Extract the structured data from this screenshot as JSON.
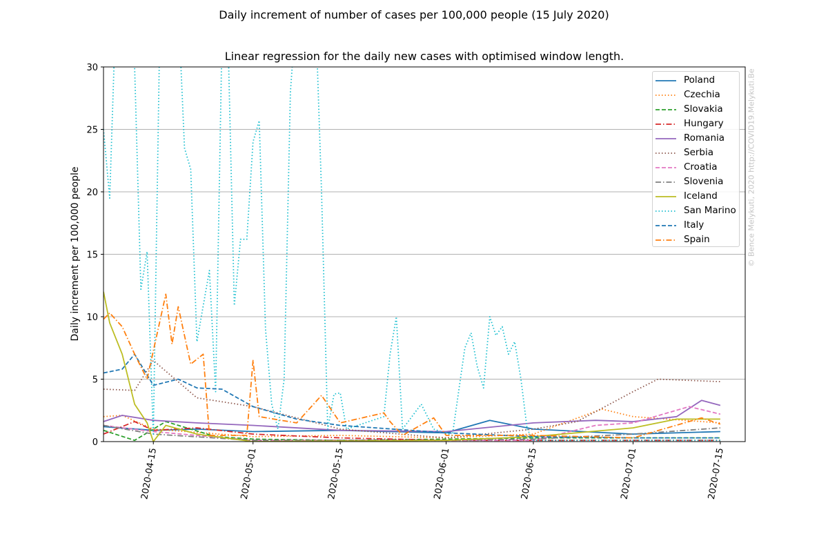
{
  "figure": {
    "suptitle": "Daily increment of number of cases per 100,000 people (15 July 2020)",
    "credit": "© Bence Melykuti, 2020  http://COVID19.Melykuti.Be"
  },
  "chart_data": {
    "type": "line",
    "title": "Linear regression for the daily new cases with optimised window length.",
    "xlabel": "",
    "ylabel": "Daily increment per 100,000 people",
    "x_start": "2020-04-07",
    "x_end": "2020-07-15",
    "xlim": [
      "2020-04-07",
      "2020-07-19"
    ],
    "ylim": [
      0,
      30
    ],
    "x_ticks": [
      "2020-04-15",
      "2020-05-01",
      "2020-05-15",
      "2020-06-01",
      "2020-06-15",
      "2020-07-01",
      "2020-07-15"
    ],
    "y_ticks": [
      0,
      5,
      10,
      15,
      20,
      25,
      30
    ],
    "grid": "horizontal",
    "legend_position": "top-right",
    "series": [
      {
        "name": "Poland",
        "color": "#1f77b4",
        "dash": "solid",
        "points": [
          [
            "2020-04-07",
            1.2
          ],
          [
            "2020-04-15",
            0.9
          ],
          [
            "2020-04-22",
            1.0
          ],
          [
            "2020-05-01",
            0.8
          ],
          [
            "2020-05-15",
            0.9
          ],
          [
            "2020-06-01",
            0.7
          ],
          [
            "2020-06-08",
            1.7
          ],
          [
            "2020-06-15",
            1.0
          ],
          [
            "2020-07-01",
            0.6
          ],
          [
            "2020-07-15",
            0.8
          ]
        ]
      },
      {
        "name": "Czechia",
        "color": "#ff7f0e",
        "dash": "dotted",
        "points": [
          [
            "2020-04-07",
            2.0
          ],
          [
            "2020-04-10",
            2.1
          ],
          [
            "2020-04-15",
            1.0
          ],
          [
            "2020-05-01",
            0.4
          ],
          [
            "2020-05-15",
            0.5
          ],
          [
            "2020-06-01",
            0.3
          ],
          [
            "2020-06-15",
            0.6
          ],
          [
            "2020-06-26",
            2.6
          ],
          [
            "2020-07-01",
            2.0
          ],
          [
            "2020-07-15",
            1.5
          ]
        ]
      },
      {
        "name": "Slovakia",
        "color": "#2ca02c",
        "dash": "dashed",
        "points": [
          [
            "2020-04-07",
            0.9
          ],
          [
            "2020-04-12",
            0.1
          ],
          [
            "2020-04-17",
            1.6
          ],
          [
            "2020-04-25",
            0.4
          ],
          [
            "2020-05-01",
            0.2
          ],
          [
            "2020-05-15",
            0.1
          ],
          [
            "2020-06-01",
            0.2
          ],
          [
            "2020-06-15",
            0.3
          ],
          [
            "2020-07-01",
            0.3
          ],
          [
            "2020-07-15",
            0.3
          ]
        ]
      },
      {
        "name": "Hungary",
        "color": "#d62728",
        "dash": "dashdot",
        "points": [
          [
            "2020-04-07",
            0.6
          ],
          [
            "2020-04-12",
            1.6
          ],
          [
            "2020-04-15",
            0.9
          ],
          [
            "2020-04-22",
            1.1
          ],
          [
            "2020-05-01",
            0.6
          ],
          [
            "2020-05-15",
            0.3
          ],
          [
            "2020-06-01",
            0.1
          ],
          [
            "2020-06-15",
            0.1
          ],
          [
            "2020-07-01",
            0.1
          ],
          [
            "2020-07-15",
            0.1
          ]
        ]
      },
      {
        "name": "Romania",
        "color": "#9467bd",
        "dash": "solid",
        "points": [
          [
            "2020-04-07",
            1.6
          ],
          [
            "2020-04-10",
            2.1
          ],
          [
            "2020-04-15",
            1.7
          ],
          [
            "2020-04-22",
            1.5
          ],
          [
            "2020-05-01",
            1.3
          ],
          [
            "2020-05-15",
            0.9
          ],
          [
            "2020-06-01",
            0.8
          ],
          [
            "2020-06-15",
            1.5
          ],
          [
            "2020-06-25",
            1.7
          ],
          [
            "2020-07-01",
            1.6
          ],
          [
            "2020-07-08",
            2.0
          ],
          [
            "2020-07-12",
            3.3
          ],
          [
            "2020-07-15",
            2.9
          ]
        ]
      },
      {
        "name": "Serbia",
        "color": "#8c564b",
        "dash": "dotted",
        "points": [
          [
            "2020-04-07",
            4.2
          ],
          [
            "2020-04-12",
            4.1
          ],
          [
            "2020-04-15",
            6.5
          ],
          [
            "2020-04-22",
            3.5
          ],
          [
            "2020-05-01",
            2.8
          ],
          [
            "2020-05-15",
            1.0
          ],
          [
            "2020-06-01",
            0.3
          ],
          [
            "2020-06-15",
            1.0
          ],
          [
            "2020-06-22",
            1.6
          ],
          [
            "2020-07-01",
            4.0
          ],
          [
            "2020-07-05",
            5.0
          ],
          [
            "2020-07-15",
            4.8
          ]
        ]
      },
      {
        "name": "Croatia",
        "color": "#e377c2",
        "dash": "dashed",
        "points": [
          [
            "2020-04-07",
            1.3
          ],
          [
            "2020-04-15",
            0.8
          ],
          [
            "2020-05-01",
            0.1
          ],
          [
            "2020-05-15",
            0.1
          ],
          [
            "2020-06-01",
            0.1
          ],
          [
            "2020-06-15",
            0.1
          ],
          [
            "2020-06-25",
            1.3
          ],
          [
            "2020-07-01",
            1.5
          ],
          [
            "2020-07-10",
            2.8
          ],
          [
            "2020-07-15",
            2.2
          ]
        ]
      },
      {
        "name": "Slovenia",
        "color": "#7f7f7f",
        "dash": "dashdot",
        "points": [
          [
            "2020-04-07",
            1.3
          ],
          [
            "2020-04-15",
            0.6
          ],
          [
            "2020-05-01",
            0.1
          ],
          [
            "2020-05-15",
            0.1
          ],
          [
            "2020-06-01",
            0.1
          ],
          [
            "2020-06-15",
            0.2
          ],
          [
            "2020-07-01",
            0.6
          ],
          [
            "2020-07-15",
            1.1
          ]
        ]
      },
      {
        "name": "Iceland",
        "color": "#bcbd22",
        "dash": "solid",
        "points": [
          [
            "2020-04-07",
            12.0
          ],
          [
            "2020-04-08",
            9.5
          ],
          [
            "2020-04-10",
            7.0
          ],
          [
            "2020-04-12",
            3.0
          ],
          [
            "2020-04-14",
            1.5
          ],
          [
            "2020-04-15",
            0.0
          ],
          [
            "2020-04-17",
            1.3
          ],
          [
            "2020-04-22",
            0.6
          ],
          [
            "2020-05-01",
            0.0
          ],
          [
            "2020-06-01",
            0.1
          ],
          [
            "2020-06-15",
            0.4
          ],
          [
            "2020-07-01",
            1.1
          ],
          [
            "2020-07-08",
            1.8
          ],
          [
            "2020-07-15",
            1.8
          ]
        ]
      },
      {
        "name": "San Marino",
        "color": "#17becf",
        "dash": "dotted",
        "points": [
          [
            "2020-04-07",
            25.0
          ],
          [
            "2020-04-08",
            19.5
          ],
          [
            "2020-04-09",
            35.0
          ],
          [
            "2020-04-12",
            30.0
          ],
          [
            "2020-04-13",
            12.2
          ],
          [
            "2020-04-14",
            15.2
          ],
          [
            "2020-04-15",
            0.5
          ],
          [
            "2020-04-16",
            32.0
          ],
          [
            "2020-04-19",
            35.0
          ],
          [
            "2020-04-20",
            23.5
          ],
          [
            "2020-04-21",
            21.8
          ],
          [
            "2020-04-22",
            8.0
          ],
          [
            "2020-04-24",
            13.7
          ],
          [
            "2020-04-25",
            4.0
          ],
          [
            "2020-04-26",
            32.0
          ],
          [
            "2020-04-27",
            32.0
          ],
          [
            "2020-04-28",
            10.9
          ],
          [
            "2020-04-29",
            16.2
          ],
          [
            "2020-04-30",
            16.2
          ],
          [
            "2020-05-01",
            24.0
          ],
          [
            "2020-05-02",
            25.7
          ],
          [
            "2020-05-03",
            9.0
          ],
          [
            "2020-05-04",
            3.0
          ],
          [
            "2020-05-05",
            1.0
          ],
          [
            "2020-05-06",
            5.0
          ],
          [
            "2020-05-07",
            28.0
          ],
          [
            "2020-05-08",
            35.0
          ],
          [
            "2020-05-11",
            35.0
          ],
          [
            "2020-05-12",
            20.0
          ],
          [
            "2020-05-13",
            1.0
          ],
          [
            "2020-05-14",
            3.8
          ],
          [
            "2020-05-15",
            3.9
          ],
          [
            "2020-05-16",
            1.0
          ],
          [
            "2020-05-22",
            2.0
          ],
          [
            "2020-05-23",
            7.0
          ],
          [
            "2020-05-24",
            10.0
          ],
          [
            "2020-05-25",
            1.0
          ],
          [
            "2020-05-28",
            3.0
          ],
          [
            "2020-05-30",
            1.0
          ],
          [
            "2020-06-02",
            0.5
          ],
          [
            "2020-06-04",
            7.5
          ],
          [
            "2020-06-05",
            8.7
          ],
          [
            "2020-06-06",
            6.0
          ],
          [
            "2020-06-07",
            4.3
          ],
          [
            "2020-06-08",
            10.0
          ],
          [
            "2020-06-09",
            8.5
          ],
          [
            "2020-06-10",
            9.2
          ],
          [
            "2020-06-11",
            7.0
          ],
          [
            "2020-06-12",
            8.0
          ],
          [
            "2020-06-13",
            5.0
          ],
          [
            "2020-06-14",
            1.0
          ],
          [
            "2020-06-15",
            0.1
          ],
          [
            "2020-07-15",
            0.1
          ]
        ]
      },
      {
        "name": "Italy",
        "color": "#1f77b4",
        "dash": "dashed",
        "points": [
          [
            "2020-04-07",
            5.5
          ],
          [
            "2020-04-10",
            5.8
          ],
          [
            "2020-04-12",
            7.0
          ],
          [
            "2020-04-15",
            4.5
          ],
          [
            "2020-04-19",
            5.0
          ],
          [
            "2020-04-22",
            4.3
          ],
          [
            "2020-04-26",
            4.2
          ],
          [
            "2020-05-01",
            2.8
          ],
          [
            "2020-05-08",
            1.8
          ],
          [
            "2020-05-15",
            1.3
          ],
          [
            "2020-06-01",
            0.7
          ],
          [
            "2020-06-15",
            0.4
          ],
          [
            "2020-07-01",
            0.3
          ],
          [
            "2020-07-15",
            0.3
          ]
        ]
      },
      {
        "name": "Spain",
        "color": "#ff7f0e",
        "dash": "dashdot",
        "points": [
          [
            "2020-04-07",
            9.8
          ],
          [
            "2020-04-08",
            10.3
          ],
          [
            "2020-04-10",
            9.2
          ],
          [
            "2020-04-12",
            7.0
          ],
          [
            "2020-04-14",
            5.0
          ],
          [
            "2020-04-17",
            11.8
          ],
          [
            "2020-04-18",
            7.8
          ],
          [
            "2020-04-19",
            10.8
          ],
          [
            "2020-04-21",
            6.2
          ],
          [
            "2020-04-23",
            7.0
          ],
          [
            "2020-04-24",
            0.5
          ],
          [
            "2020-04-30",
            0.5
          ],
          [
            "2020-05-01",
            6.5
          ],
          [
            "2020-05-02",
            2.0
          ],
          [
            "2020-05-08",
            1.5
          ],
          [
            "2020-05-12",
            3.7
          ],
          [
            "2020-05-15",
            1.5
          ],
          [
            "2020-05-22",
            2.3
          ],
          [
            "2020-05-23",
            1.6
          ],
          [
            "2020-05-25",
            0.5
          ],
          [
            "2020-05-30",
            1.9
          ],
          [
            "2020-06-01",
            0.5
          ],
          [
            "2020-06-15",
            0.5
          ],
          [
            "2020-07-01",
            0.3
          ],
          [
            "2020-07-12",
            1.9
          ],
          [
            "2020-07-15",
            1.4
          ]
        ]
      }
    ]
  }
}
